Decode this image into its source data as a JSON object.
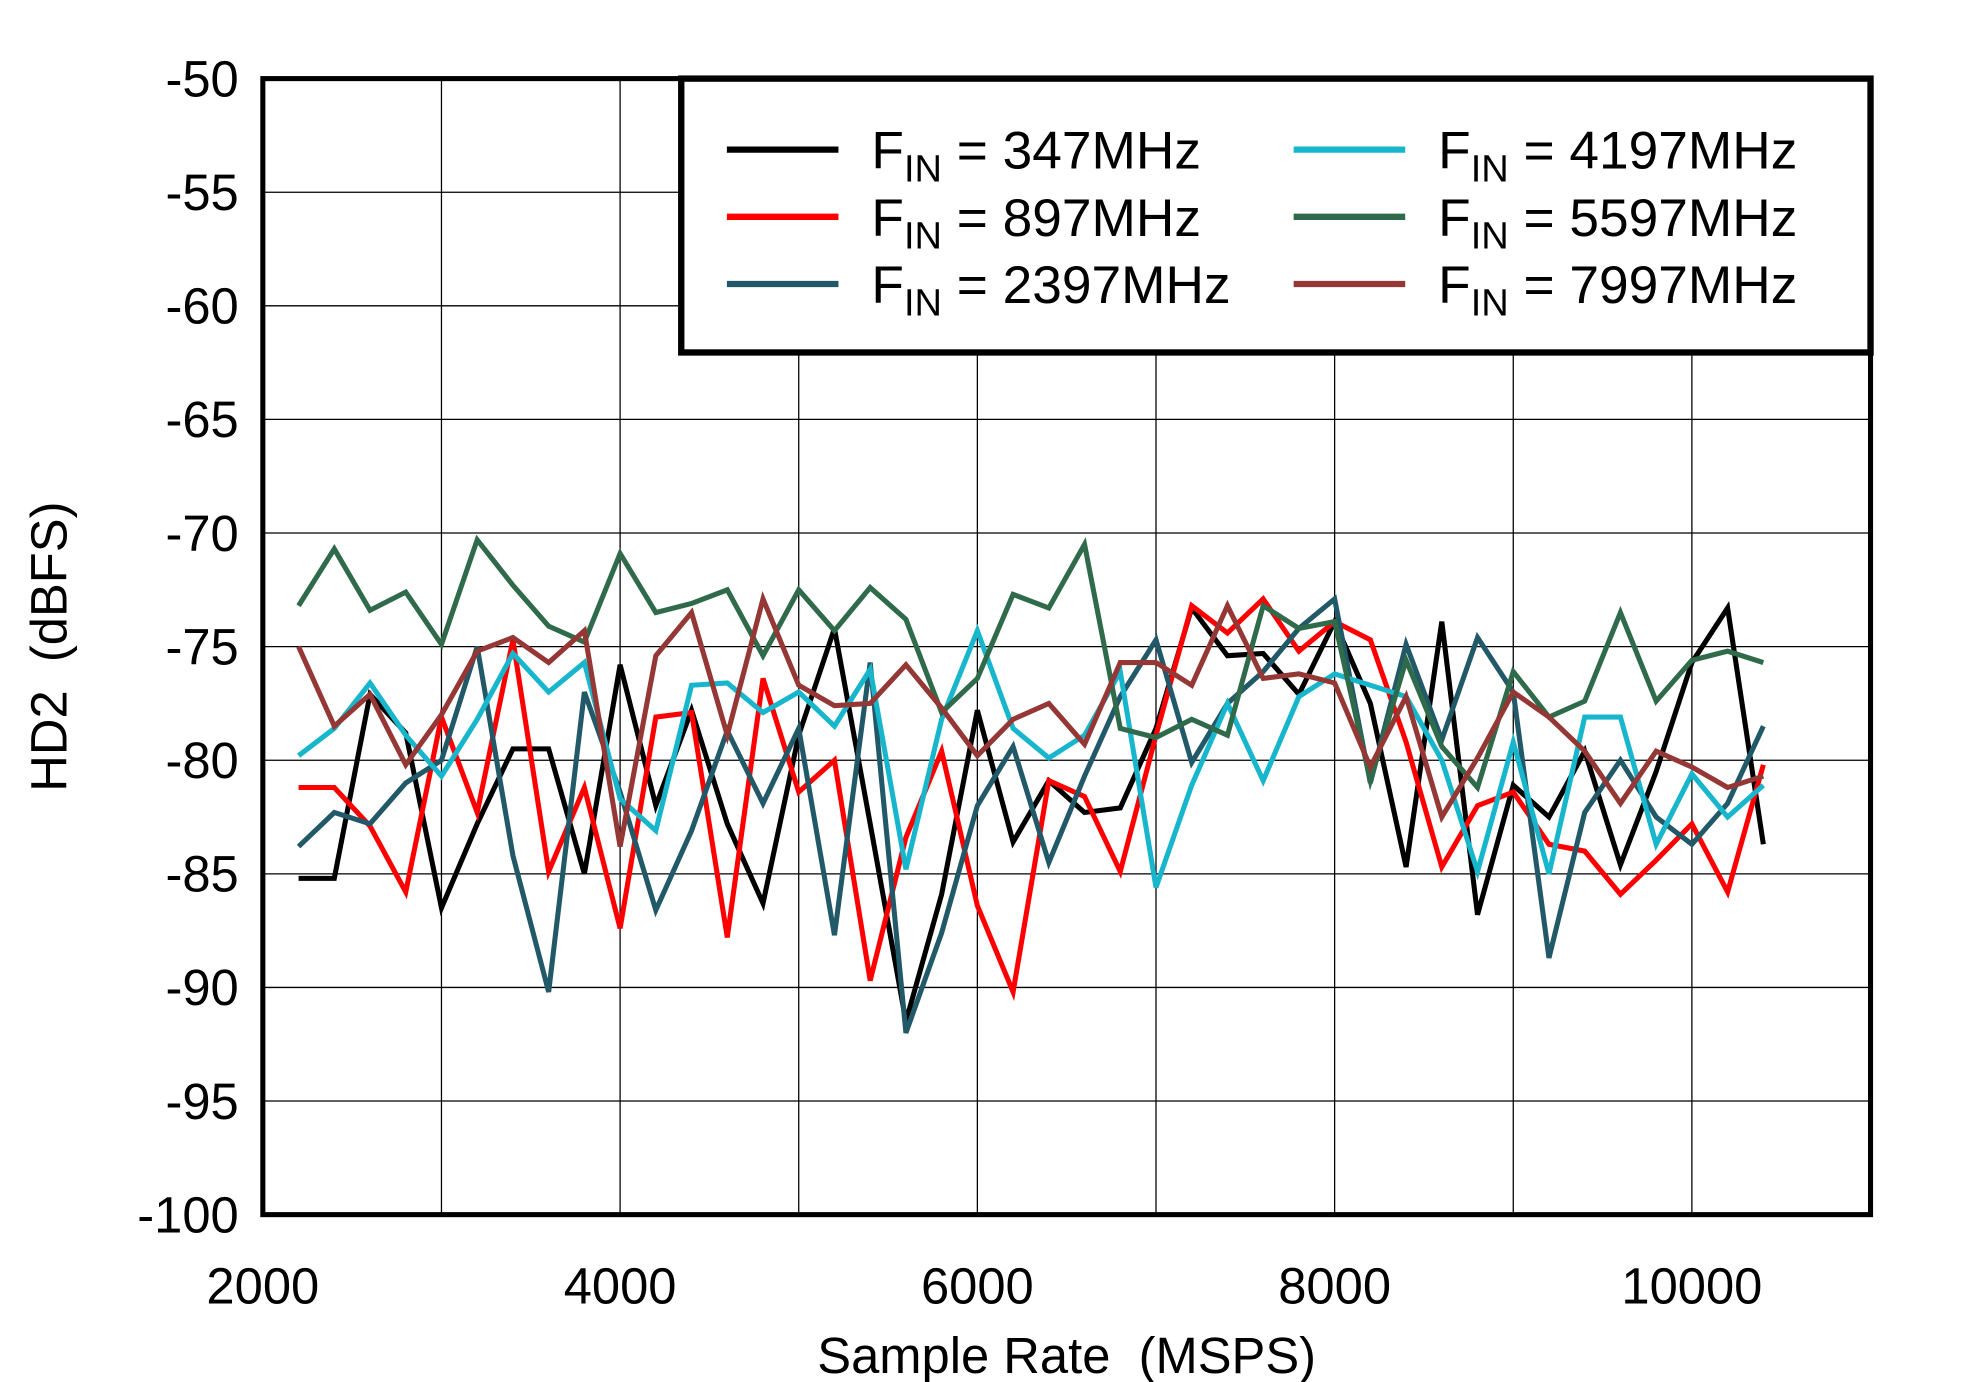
{
  "chart_data": {
    "type": "line",
    "title": "",
    "xlabel": "Sample Rate  (MSPS)",
    "ylabel": "HD2  (dBFS)",
    "xlim": [
      2000,
      11000
    ],
    "ylim": [
      -100,
      -50
    ],
    "xticks": [
      2000,
      4000,
      6000,
      8000,
      10000
    ],
    "yticks": [
      -50,
      -55,
      -60,
      -65,
      -70,
      -75,
      -80,
      -85,
      -90,
      -95,
      -100
    ],
    "grid": true,
    "legend_position": "top-right",
    "x": [
      2200,
      2400,
      2600,
      2800,
      3000,
      3200,
      3400,
      3600,
      3800,
      4000,
      4200,
      4400,
      4600,
      4800,
      5000,
      5200,
      5400,
      5600,
      5800,
      6000,
      6200,
      6400,
      6600,
      6800,
      7000,
      7200,
      7400,
      7600,
      7800,
      8000,
      8200,
      8400,
      8600,
      8800,
      9000,
      9200,
      9400,
      9600,
      9800,
      10000,
      10200,
      10400
    ],
    "series": [
      {
        "name": "FIN = 347MHz",
        "color": "#000000",
        "values": [
          -85.2,
          -85.2,
          -77.1,
          -78.8,
          -86.5,
          -82.8,
          -79.5,
          -79.5,
          -85.0,
          -75.8,
          -82.0,
          -77.8,
          -82.8,
          -86.3,
          -78.9,
          -74.2,
          -82.8,
          -91.5,
          -85.9,
          -77.8,
          -83.6,
          -80.9,
          -82.3,
          -82.1,
          -78.6,
          -73.3,
          -75.4,
          -75.3,
          -77.1,
          -73.9,
          -77.5,
          -84.7,
          -73.9,
          -86.8,
          -81.1,
          -82.5,
          -79.6,
          -84.6,
          -80.5,
          -75.7,
          -73.3,
          -83.7
        ]
      },
      {
        "name": "FIN = 897MHz",
        "color": "#ff0000",
        "values": [
          -81.2,
          -81.2,
          -82.9,
          -85.8,
          -78.1,
          -82.3,
          -74.7,
          -84.9,
          -81.2,
          -87.4,
          -78.1,
          -77.9,
          -87.8,
          -76.4,
          -81.4,
          -80.0,
          -89.7,
          -83.4,
          -79.6,
          -86.4,
          -90.2,
          -80.9,
          -81.6,
          -84.9,
          -78.9,
          -73.2,
          -74.4,
          -72.9,
          -75.2,
          -73.9,
          -74.7,
          -79.2,
          -84.7,
          -82.0,
          -81.4,
          -83.7,
          -84.0,
          -85.9,
          -84.4,
          -82.8,
          -85.8,
          -80.2
        ]
      },
      {
        "name": "FIN = 2397MHz",
        "color": "#215968",
        "values": [
          -83.8,
          -82.3,
          -82.8,
          -81.0,
          -80.0,
          -75.0,
          -84.2,
          -90.2,
          -77.0,
          -81.4,
          -86.6,
          -83.1,
          -78.7,
          -81.9,
          -78.6,
          -87.7,
          -75.7,
          -92.0,
          -87.6,
          -82.0,
          -79.4,
          -84.5,
          -80.7,
          -77.2,
          -74.7,
          -80.1,
          -77.5,
          -76.1,
          -74.2,
          -72.9,
          -81.0,
          -74.9,
          -79.1,
          -74.6,
          -77.0,
          -88.7,
          -82.3,
          -80.0,
          -82.5,
          -83.7,
          -81.9,
          -78.5
        ]
      },
      {
        "name": "FIN = 4197MHz",
        "color": "#17b6cc",
        "values": [
          -79.8,
          -78.6,
          -76.6,
          -78.9,
          -80.7,
          -78.2,
          -75.3,
          -77.0,
          -75.7,
          -81.7,
          -83.1,
          -76.7,
          -76.6,
          -77.9,
          -77.0,
          -78.5,
          -76.0,
          -84.8,
          -78.2,
          -74.3,
          -78.6,
          -79.9,
          -78.9,
          -76.1,
          -85.6,
          -81.1,
          -77.5,
          -80.9,
          -77.2,
          -76.2,
          -76.7,
          -77.2,
          -80.0,
          -84.9,
          -79.2,
          -85.0,
          -78.1,
          -78.1,
          -83.7,
          -80.6,
          -82.5,
          -81.1
        ]
      },
      {
        "name": "FIN = 5597MHz",
        "color": "#2f6b4b",
        "values": [
          -73.2,
          -70.7,
          -73.4,
          -72.6,
          -74.9,
          -70.3,
          -72.3,
          -74.1,
          -74.8,
          -70.9,
          -73.5,
          -73.1,
          -72.5,
          -75.4,
          -72.5,
          -74.3,
          -72.4,
          -73.8,
          -77.9,
          -76.4,
          -72.7,
          -73.3,
          -70.5,
          -78.6,
          -79.0,
          -78.2,
          -78.9,
          -73.2,
          -74.2,
          -73.9,
          -80.9,
          -75.6,
          -79.4,
          -81.2,
          -76.1,
          -78.1,
          -77.4,
          -73.5,
          -77.4,
          -75.6,
          -75.2,
          -75.7
        ]
      },
      {
        "name": "FIN = 7997MHz",
        "color": "#953735",
        "values": [
          -75.0,
          -78.5,
          -77.1,
          -80.2,
          -78.0,
          -75.2,
          -74.6,
          -75.7,
          -74.3,
          -83.8,
          -75.4,
          -73.5,
          -78.9,
          -72.9,
          -76.7,
          -77.6,
          -77.5,
          -75.8,
          -77.7,
          -79.8,
          -78.2,
          -77.5,
          -79.3,
          -75.7,
          -75.7,
          -76.7,
          -73.2,
          -76.4,
          -76.2,
          -76.6,
          -80.3,
          -77.2,
          -82.5,
          -79.9,
          -77.0,
          -78.1,
          -79.6,
          -81.9,
          -79.6,
          -80.3,
          -81.2,
          -80.7
        ]
      }
    ]
  }
}
